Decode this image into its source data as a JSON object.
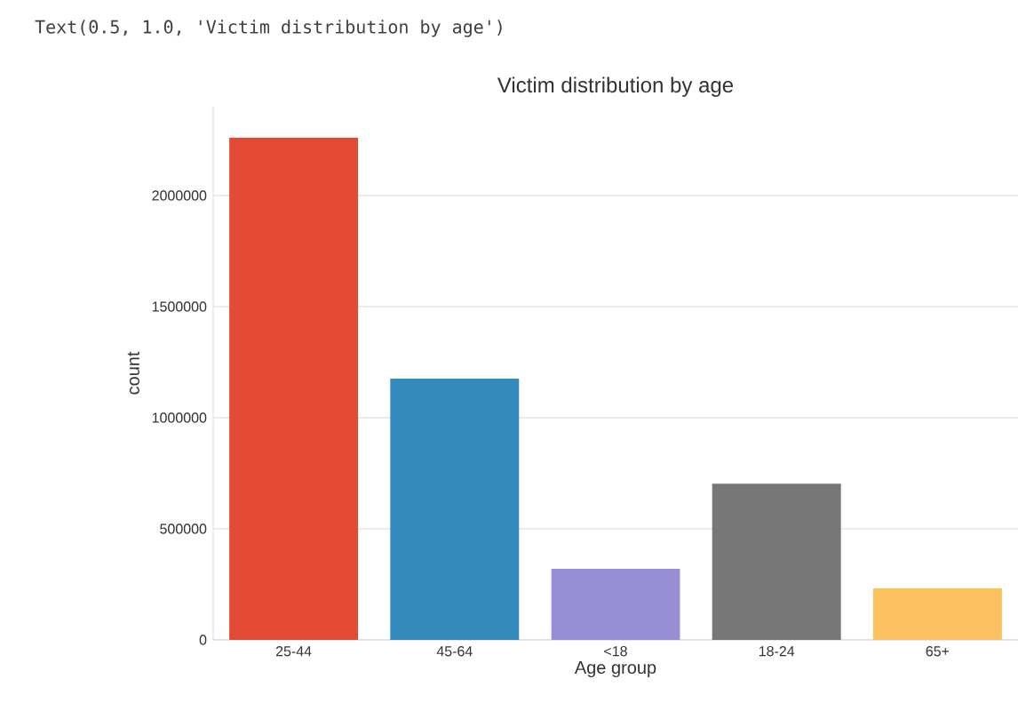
{
  "chart_data": {
    "type": "bar",
    "title": "Victim distribution by age",
    "xlabel": "Age group",
    "ylabel": "count",
    "annotations": [
      "Text(0.5, 1.0, 'Victim distribution by age')"
    ],
    "categories": [
      "25-44",
      "45-64",
      "<18",
      "18-24",
      "65+"
    ],
    "values": [
      2260000,
      1176000,
      320000,
      703000,
      232000
    ],
    "colors": [
      "#e24a33",
      "#348abd",
      "#988ed5",
      "#777777",
      "#fbc15e"
    ],
    "ylim": [
      0,
      2400000
    ],
    "yticks": [
      0,
      500000,
      1000000,
      1500000,
      2000000
    ],
    "grid": "y"
  }
}
